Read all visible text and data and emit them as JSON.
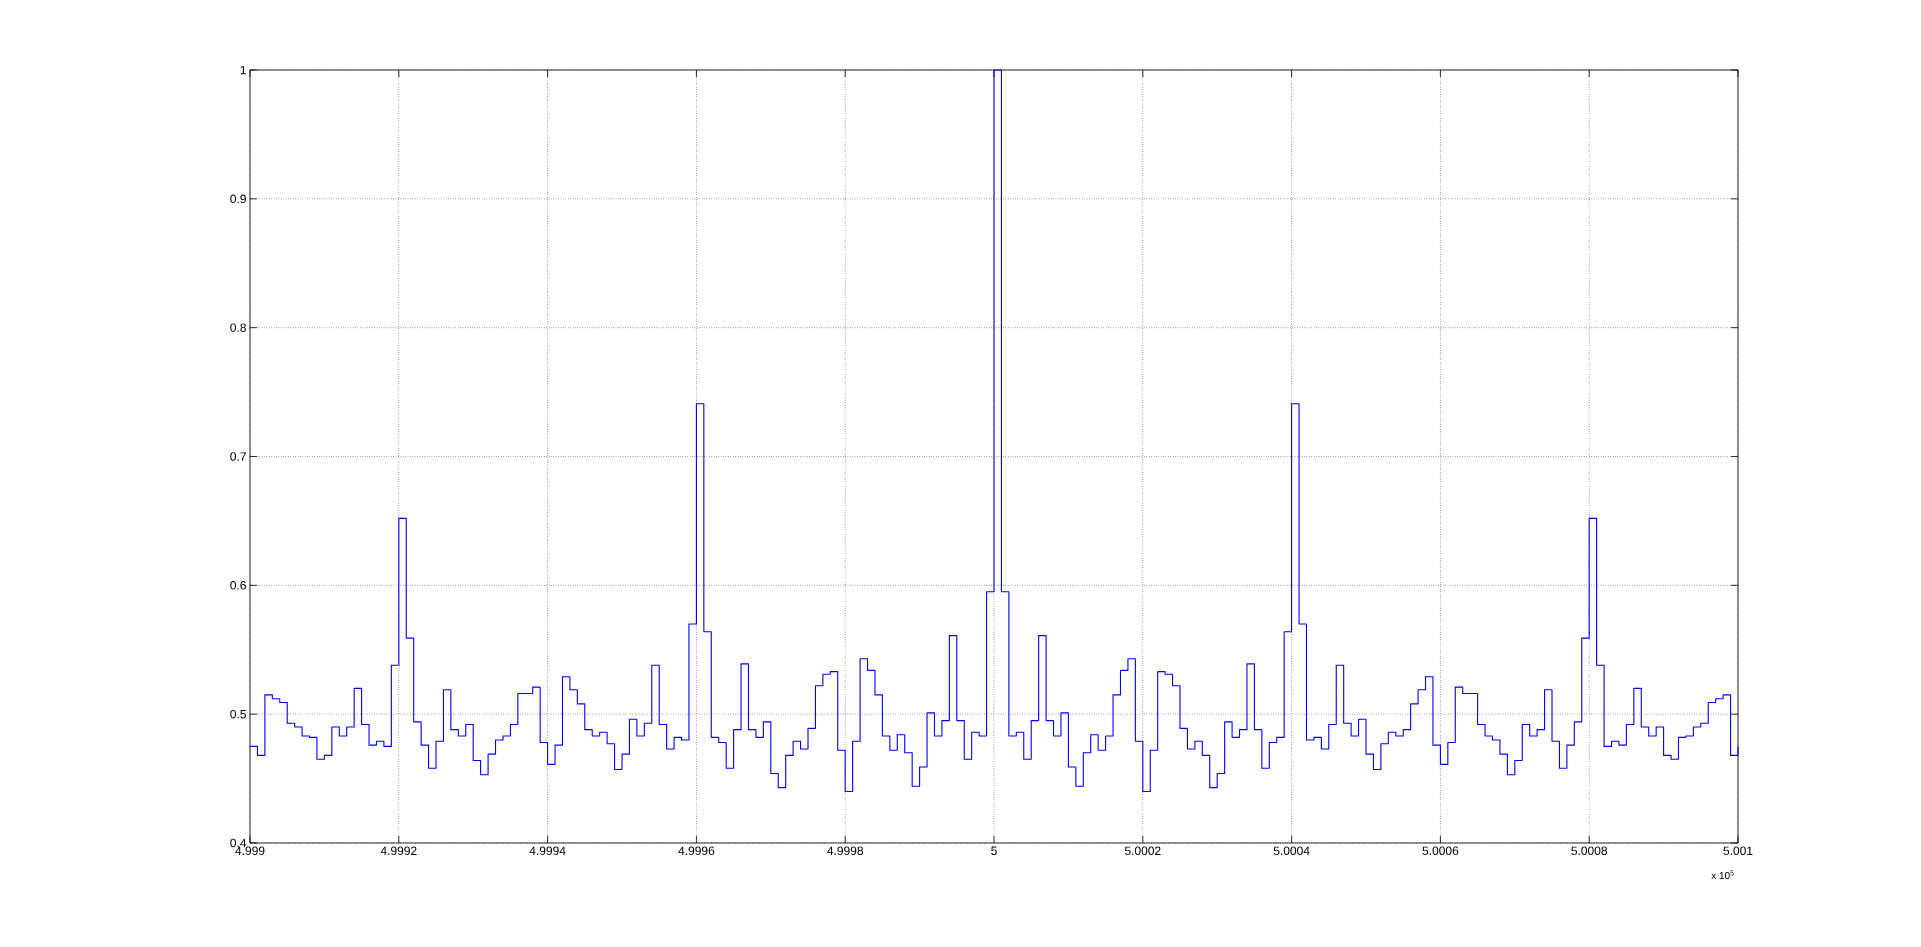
{
  "chart_data": {
    "type": "step",
    "color": "#0000ff",
    "grid": true,
    "line_style": "solid",
    "x": [
      4.999,
      4.99901,
      4.99902,
      4.99903,
      4.99904,
      4.99905,
      4.99906,
      4.99907,
      4.99908,
      4.99909,
      4.9991,
      4.99911,
      4.99912,
      4.99913,
      4.99914,
      4.99915,
      4.99916,
      4.99917,
      4.99918,
      4.99919,
      4.9992,
      4.99921,
      4.99922,
      4.99923,
      4.99924,
      4.99925,
      4.99926,
      4.99927,
      4.99928,
      4.99929,
      4.9993,
      4.99931,
      4.99932,
      4.99933,
      4.99934,
      4.99935,
      4.99936,
      4.99937,
      4.99938,
      4.99939,
      4.9994,
      4.99941,
      4.99942,
      4.99943,
      4.99944,
      4.99945,
      4.99946,
      4.99947,
      4.99948,
      4.99949,
      4.9995,
      4.99951,
      4.99952,
      4.99953,
      4.99954,
      4.99955,
      4.99956,
      4.99957,
      4.99958,
      4.99959,
      4.9996,
      4.99961,
      4.99962,
      4.99963,
      4.99964,
      4.99965,
      4.99966,
      4.99967,
      4.99968,
      4.99969,
      4.9997,
      4.99971,
      4.99972,
      4.99973,
      4.99974,
      4.99975,
      4.99976,
      4.99977,
      4.99978,
      4.99979,
      4.9998,
      4.99981,
      4.99982,
      4.99983,
      4.99984,
      4.99985,
      4.99986,
      4.99987,
      4.99988,
      4.99989,
      4.9999,
      4.99991,
      4.99992,
      4.99993,
      4.99994,
      4.99995,
      4.99996,
      4.99997,
      4.99998,
      4.99999,
      5,
      5.00001,
      5.00002,
      5.00003,
      5.00004,
      5.00005,
      5.00006,
      5.00007,
      5.00008,
      5.00009,
      5.0001,
      5.00011,
      5.00012,
      5.00013,
      5.00014,
      5.00015,
      5.00016,
      5.00017,
      5.00018,
      5.00019,
      5.0002,
      5.00021,
      5.00022,
      5.00023,
      5.00024,
      5.00025,
      5.00026,
      5.00027,
      5.00028,
      5.00029,
      5.0003,
      5.00031,
      5.00032,
      5.00033,
      5.00034,
      5.00035,
      5.00036,
      5.00037,
      5.00038,
      5.00039,
      5.0004,
      5.00041,
      5.00042,
      5.00043,
      5.00044,
      5.00045,
      5.00046,
      5.00047,
      5.00048,
      5.00049,
      5.0005,
      5.00051,
      5.00052,
      5.00053,
      5.00054,
      5.00055,
      5.00056,
      5.00057,
      5.00058,
      5.00059,
      5.0006,
      5.00061,
      5.00062,
      5.00063,
      5.00064,
      5.00065,
      5.00066,
      5.00067,
      5.00068,
      5.00069,
      5.0007,
      5.00071,
      5.00072,
      5.00073,
      5.00074,
      5.00075,
      5.00076,
      5.00077,
      5.00078,
      5.00079,
      5.0008,
      5.00081,
      5.00082,
      5.00083,
      5.00084,
      5.00085,
      5.00086,
      5.00087,
      5.00088,
      5.00089,
      5.0009,
      5.00091,
      5.00092,
      5.00093,
      5.00094,
      5.00095,
      5.00096,
      5.00097,
      5.00098,
      5.00099,
      5.001
    ],
    "values": [
      0.475,
      0.468,
      0.515,
      0.512,
      0.509,
      0.493,
      0.49,
      0.483,
      0.482,
      0.465,
      0.468,
      0.49,
      0.483,
      0.49,
      0.52,
      0.492,
      0.476,
      0.479,
      0.475,
      0.538,
      0.652,
      0.559,
      0.494,
      0.476,
      0.458,
      0.479,
      0.519,
      0.488,
      0.483,
      0.492,
      0.464,
      0.453,
      0.469,
      0.48,
      0.483,
      0.492,
      0.516,
      0.516,
      0.521,
      0.478,
      0.461,
      0.476,
      0.529,
      0.519,
      0.508,
      0.488,
      0.483,
      0.486,
      0.477,
      0.457,
      0.469,
      0.496,
      0.483,
      0.493,
      0.538,
      0.492,
      0.473,
      0.482,
      0.48,
      0.57,
      0.741,
      0.564,
      0.482,
      0.478,
      0.458,
      0.488,
      0.539,
      0.488,
      0.482,
      0.494,
      0.454,
      0.443,
      0.468,
      0.479,
      0.473,
      0.489,
      0.522,
      0.531,
      0.533,
      0.472,
      0.44,
      0.479,
      0.543,
      0.534,
      0.515,
      0.483,
      0.472,
      0.484,
      0.47,
      0.444,
      0.459,
      0.501,
      0.483,
      0.495,
      0.561,
      0.495,
      0.465,
      0.486,
      0.483,
      0.595,
      1,
      0.595,
      0.483,
      0.486,
      0.465,
      0.495,
      0.561,
      0.495,
      0.483,
      0.501,
      0.459,
      0.444,
      0.47,
      0.484,
      0.472,
      0.483,
      0.515,
      0.534,
      0.543,
      0.479,
      0.44,
      0.472,
      0.533,
      0.531,
      0.522,
      0.489,
      0.473,
      0.479,
      0.468,
      0.443,
      0.454,
      0.494,
      0.482,
      0.488,
      0.539,
      0.488,
      0.458,
      0.478,
      0.482,
      0.564,
      0.741,
      0.57,
      0.48,
      0.482,
      0.473,
      0.492,
      0.538,
      0.493,
      0.483,
      0.496,
      0.469,
      0.457,
      0.477,
      0.486,
      0.483,
      0.488,
      0.508,
      0.519,
      0.529,
      0.476,
      0.461,
      0.478,
      0.521,
      0.516,
      0.516,
      0.492,
      0.483,
      0.48,
      0.469,
      0.453,
      0.464,
      0.492,
      0.483,
      0.488,
      0.519,
      0.479,
      0.458,
      0.476,
      0.494,
      0.559,
      0.652,
      0.538,
      0.475,
      0.479,
      0.476,
      0.492,
      0.52,
      0.49,
      0.483,
      0.49,
      0.468,
      0.465,
      0.482,
      0.483,
      0.49,
      0.493,
      0.509,
      0.512,
      0.515,
      0.468,
      0.475
    ],
    "xlim": [
      4.999,
      5.001
    ],
    "xticks": [
      4.999,
      4.9992,
      4.9994,
      4.9996,
      4.9998,
      5,
      5.0002,
      5.0004,
      5.0006,
      5.0008,
      5.001
    ],
    "ylim": [
      0.4,
      1
    ],
    "yticks": [
      0.4,
      0.5,
      0.6,
      0.7,
      0.8,
      0.9,
      1
    ],
    "annotations": [
      "x 10$^{5}$"
    ]
  }
}
